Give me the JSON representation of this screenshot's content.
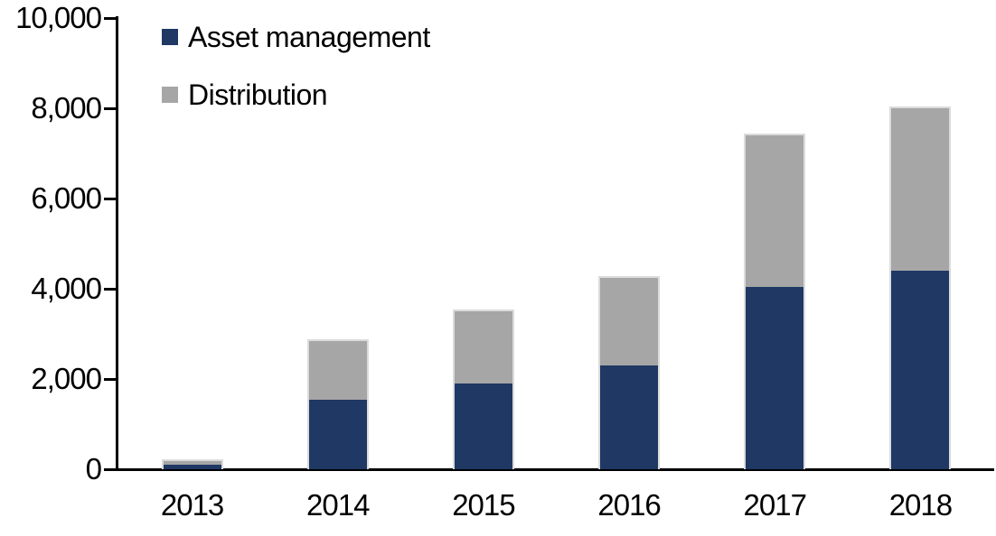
{
  "chart_data": {
    "type": "bar",
    "stacked": true,
    "title": "",
    "categories": [
      "2013",
      "2014",
      "2015",
      "2016",
      "2017",
      "2018"
    ],
    "series": [
      {
        "name": "Asset management",
        "color": "#1F3864",
        "values": [
          100,
          1550,
          1900,
          2300,
          4050,
          4400
        ]
      },
      {
        "name": "Distribution",
        "color": "#A6A6A6",
        "values": [
          80,
          1300,
          1600,
          1950,
          3350,
          3600
        ]
      }
    ],
    "totals": [
      180,
      2850,
      3500,
      4250,
      7400,
      8000
    ],
    "xlabel": "",
    "ylabel": "",
    "ylim": [
      0,
      10000
    ],
    "ytick_step": 2000,
    "ytick_labels": [
      "0",
      "2,000",
      "4,000",
      "6,000",
      "8,000",
      "10,000"
    ],
    "grid": false,
    "legend_position": "top-left-inside",
    "axis_color": "#000000",
    "text_color": "#000000",
    "bar_border_color": "#DBDBDB"
  }
}
